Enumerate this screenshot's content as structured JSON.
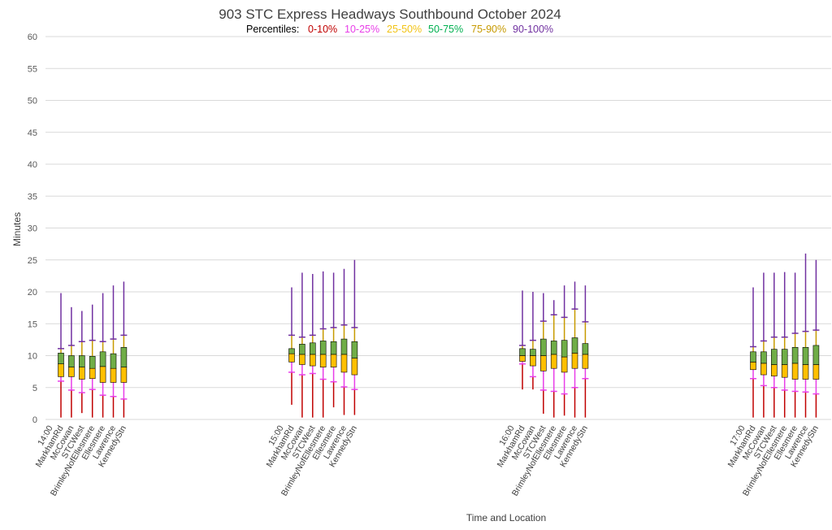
{
  "chart_data": {
    "type": "boxplot",
    "title": "903 STC Express Headways Southbound October 2024",
    "legend": {
      "label": "Percentiles:",
      "items": [
        {
          "text": "0-10%",
          "color": "#c00000"
        },
        {
          "text": "10-25%",
          "color": "#e83ee8"
        },
        {
          "text": "25-50%",
          "color": "#f2c314"
        },
        {
          "text": "50-75%",
          "color": "#00b050"
        },
        {
          "text": "75-90%",
          "color": "#c79a00"
        },
        {
          "text": "90-100%",
          "color": "#7030a0"
        }
      ]
    },
    "ylabel": "Minutes",
    "xlabel": "Time and Location",
    "ylim": [
      0,
      60
    ],
    "yticks": [
      0,
      5,
      10,
      15,
      20,
      25,
      30,
      35,
      40,
      45,
      50,
      55,
      60
    ],
    "colors": {
      "p0_10": "#c00000",
      "p10_25": "#e83ee8",
      "box_lower": "#ffc000",
      "box_upper": "#70ad47",
      "p75_90": "#c79a00",
      "p90_100": "#7030a0",
      "box_border": "#000000"
    },
    "groups": [
      {
        "time": "14:00",
        "stations": [
          {
            "name": "MarkhamRd",
            "min": 0.3,
            "p10": 6.0,
            "p25": 6.7,
            "median": 8.7,
            "p75": 10.4,
            "p90": 11.1,
            "max": 19.8
          },
          {
            "name": "McCowan",
            "min": 0.3,
            "p10": 4.6,
            "p25": 6.7,
            "median": 8.2,
            "p75": 10.0,
            "p90": 11.6,
            "max": 17.6
          },
          {
            "name": "STCWest",
            "min": 1.0,
            "p10": 4.2,
            "p25": 6.3,
            "median": 8.2,
            "p75": 10.0,
            "p90": 12.2,
            "max": 17.0
          },
          {
            "name": "BrimleyNofEllesmere",
            "min": 0.3,
            "p10": 4.7,
            "p25": 6.4,
            "median": 8.0,
            "p75": 9.9,
            "p90": 12.4,
            "max": 18.0
          },
          {
            "name": "Ellesmere",
            "min": 0.3,
            "p10": 3.8,
            "p25": 5.8,
            "median": 8.3,
            "p75": 10.6,
            "p90": 12.2,
            "max": 19.8
          },
          {
            "name": "Lawrence",
            "min": 0.3,
            "p10": 3.6,
            "p25": 5.8,
            "median": 8.0,
            "p75": 10.3,
            "p90": 12.6,
            "max": 21.0
          },
          {
            "name": "KennedyStn",
            "min": 0.3,
            "p10": 3.2,
            "p25": 5.8,
            "median": 8.2,
            "p75": 11.3,
            "p90": 13.2,
            "max": 21.6
          }
        ]
      },
      {
        "time": "15:00",
        "stations": [
          {
            "name": "MarkhamRd",
            "min": 2.3,
            "p10": 7.4,
            "p25": 9.0,
            "median": 10.3,
            "p75": 11.1,
            "p90": 13.2,
            "max": 20.7
          },
          {
            "name": "McCowan",
            "min": 0.3,
            "p10": 7.0,
            "p25": 8.6,
            "median": 10.2,
            "p75": 11.8,
            "p90": 12.9,
            "max": 23.0
          },
          {
            "name": "STCWest",
            "min": 0.3,
            "p10": 7.2,
            "p25": 8.4,
            "median": 10.2,
            "p75": 12.0,
            "p90": 13.2,
            "max": 22.8
          },
          {
            "name": "BrimleyNofEllesmere",
            "min": 0.3,
            "p10": 6.3,
            "p25": 8.2,
            "median": 10.2,
            "p75": 12.3,
            "p90": 14.2,
            "max": 23.2
          },
          {
            "name": "Ellesmere",
            "min": 1.9,
            "p10": 5.9,
            "p25": 8.2,
            "median": 10.2,
            "p75": 12.2,
            "p90": 14.4,
            "max": 23.0
          },
          {
            "name": "Lawrence",
            "min": 0.7,
            "p10": 5.1,
            "p25": 7.4,
            "median": 10.2,
            "p75": 12.6,
            "p90": 14.8,
            "max": 23.6
          },
          {
            "name": "KennedyStn",
            "min": 0.7,
            "p10": 4.7,
            "p25": 7.0,
            "median": 9.6,
            "p75": 12.2,
            "p90": 14.4,
            "max": 25.0
          }
        ]
      },
      {
        "time": "16:00",
        "stations": [
          {
            "name": "MarkhamRd",
            "min": 4.7,
            "p10": 8.7,
            "p25": 9.1,
            "median": 10.0,
            "p75": 11.1,
            "p90": 11.6,
            "max": 20.2
          },
          {
            "name": "McCowan",
            "min": 4.7,
            "p10": 6.7,
            "p25": 8.4,
            "median": 10.0,
            "p75": 11.0,
            "p90": 12.4,
            "max": 20.0
          },
          {
            "name": "STCWest",
            "min": 0.9,
            "p10": 4.6,
            "p25": 7.6,
            "median": 10.0,
            "p75": 12.6,
            "p90": 15.4,
            "max": 19.8
          },
          {
            "name": "BrimleyNofEllesmere",
            "min": 0.3,
            "p10": 4.4,
            "p25": 8.0,
            "median": 10.2,
            "p75": 12.3,
            "p90": 16.4,
            "max": 18.7
          },
          {
            "name": "Ellesmere",
            "min": 0.6,
            "p10": 4.0,
            "p25": 7.4,
            "median": 9.8,
            "p75": 12.4,
            "p90": 16.0,
            "max": 21.0
          },
          {
            "name": "Lawrence",
            "min": 0.3,
            "p10": 5.0,
            "p25": 8.0,
            "median": 10.4,
            "p75": 12.8,
            "p90": 17.3,
            "max": 21.6
          },
          {
            "name": "KennedyStn",
            "min": 0.3,
            "p10": 6.4,
            "p25": 8.0,
            "median": 10.2,
            "p75": 11.9,
            "p90": 15.3,
            "max": 21.0
          }
        ]
      },
      {
        "time": "17:00",
        "stations": [
          {
            "name": "MarkhamRd",
            "min": 0.3,
            "p10": 6.4,
            "p25": 7.8,
            "median": 9.0,
            "p75": 10.6,
            "p90": 11.4,
            "max": 20.7
          },
          {
            "name": "McCowan",
            "min": 0.3,
            "p10": 5.3,
            "p25": 7.0,
            "median": 8.8,
            "p75": 10.6,
            "p90": 12.3,
            "max": 23.0
          },
          {
            "name": "STCWest",
            "min": 0.3,
            "p10": 5.0,
            "p25": 6.8,
            "median": 8.6,
            "p75": 11.0,
            "p90": 12.9,
            "max": 23.0
          },
          {
            "name": "BrimleyNofEllesmere",
            "min": 0.3,
            "p10": 4.6,
            "p25": 6.6,
            "median": 8.6,
            "p75": 11.0,
            "p90": 12.9,
            "max": 23.1
          },
          {
            "name": "Ellesmere",
            "min": 0.3,
            "p10": 4.4,
            "p25": 6.3,
            "median": 8.8,
            "p75": 11.3,
            "p90": 13.5,
            "max": 23.0
          },
          {
            "name": "Lawrence",
            "min": 0.3,
            "p10": 4.3,
            "p25": 6.3,
            "median": 8.6,
            "p75": 11.3,
            "p90": 13.8,
            "max": 26.0
          },
          {
            "name": "KennedyStn",
            "min": 0.3,
            "p10": 4.0,
            "p25": 6.3,
            "median": 8.6,
            "p75": 11.6,
            "p90": 14.0,
            "max": 25.0
          }
        ]
      }
    ]
  }
}
